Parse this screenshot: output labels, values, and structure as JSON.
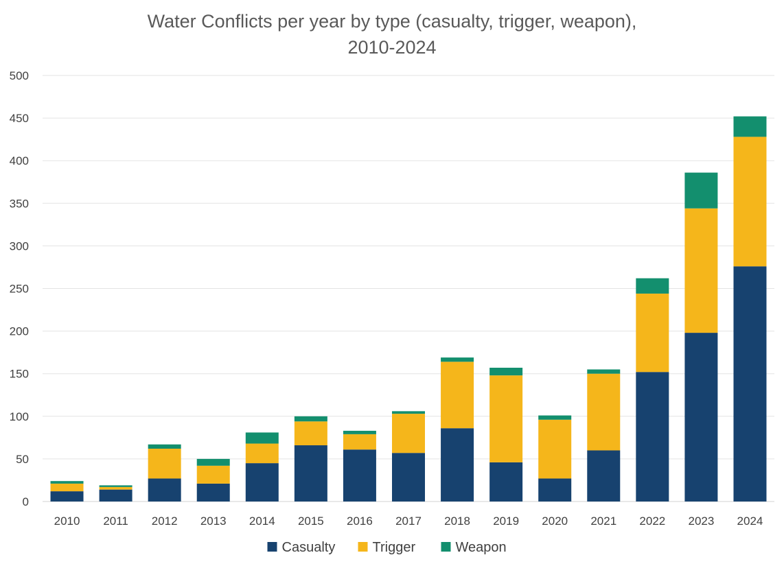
{
  "chart_data": {
    "type": "bar",
    "stacked": true,
    "title_line1": "Water Conflicts per year by type (casualty, trigger, weapon),",
    "title_line2": "2010-2024",
    "categories": [
      "2010",
      "2011",
      "2012",
      "2013",
      "2014",
      "2015",
      "2016",
      "2017",
      "2018",
      "2019",
      "2020",
      "2021",
      "2022",
      "2023",
      "2024"
    ],
    "series": [
      {
        "name": "Casualty",
        "color": "#17426f",
        "values": [
          12,
          14,
          27,
          21,
          45,
          66,
          61,
          57,
          86,
          46,
          27,
          60,
          152,
          198,
          276
        ]
      },
      {
        "name": "Trigger",
        "color": "#f5b61b",
        "values": [
          9,
          3,
          35,
          21,
          23,
          28,
          18,
          46,
          78,
          102,
          69,
          90,
          92,
          146,
          152
        ]
      },
      {
        "name": "Weapon",
        "color": "#138f6e",
        "values": [
          3,
          2,
          5,
          8,
          13,
          6,
          4,
          3,
          5,
          9,
          5,
          5,
          18,
          42,
          24
        ]
      }
    ],
    "ylim": [
      0,
      500
    ],
    "yticks": [
      "0",
      "50",
      "100",
      "150",
      "200",
      "250",
      "300",
      "350",
      "400",
      "450",
      "500"
    ],
    "grid": true,
    "legend_position": "bottom"
  }
}
